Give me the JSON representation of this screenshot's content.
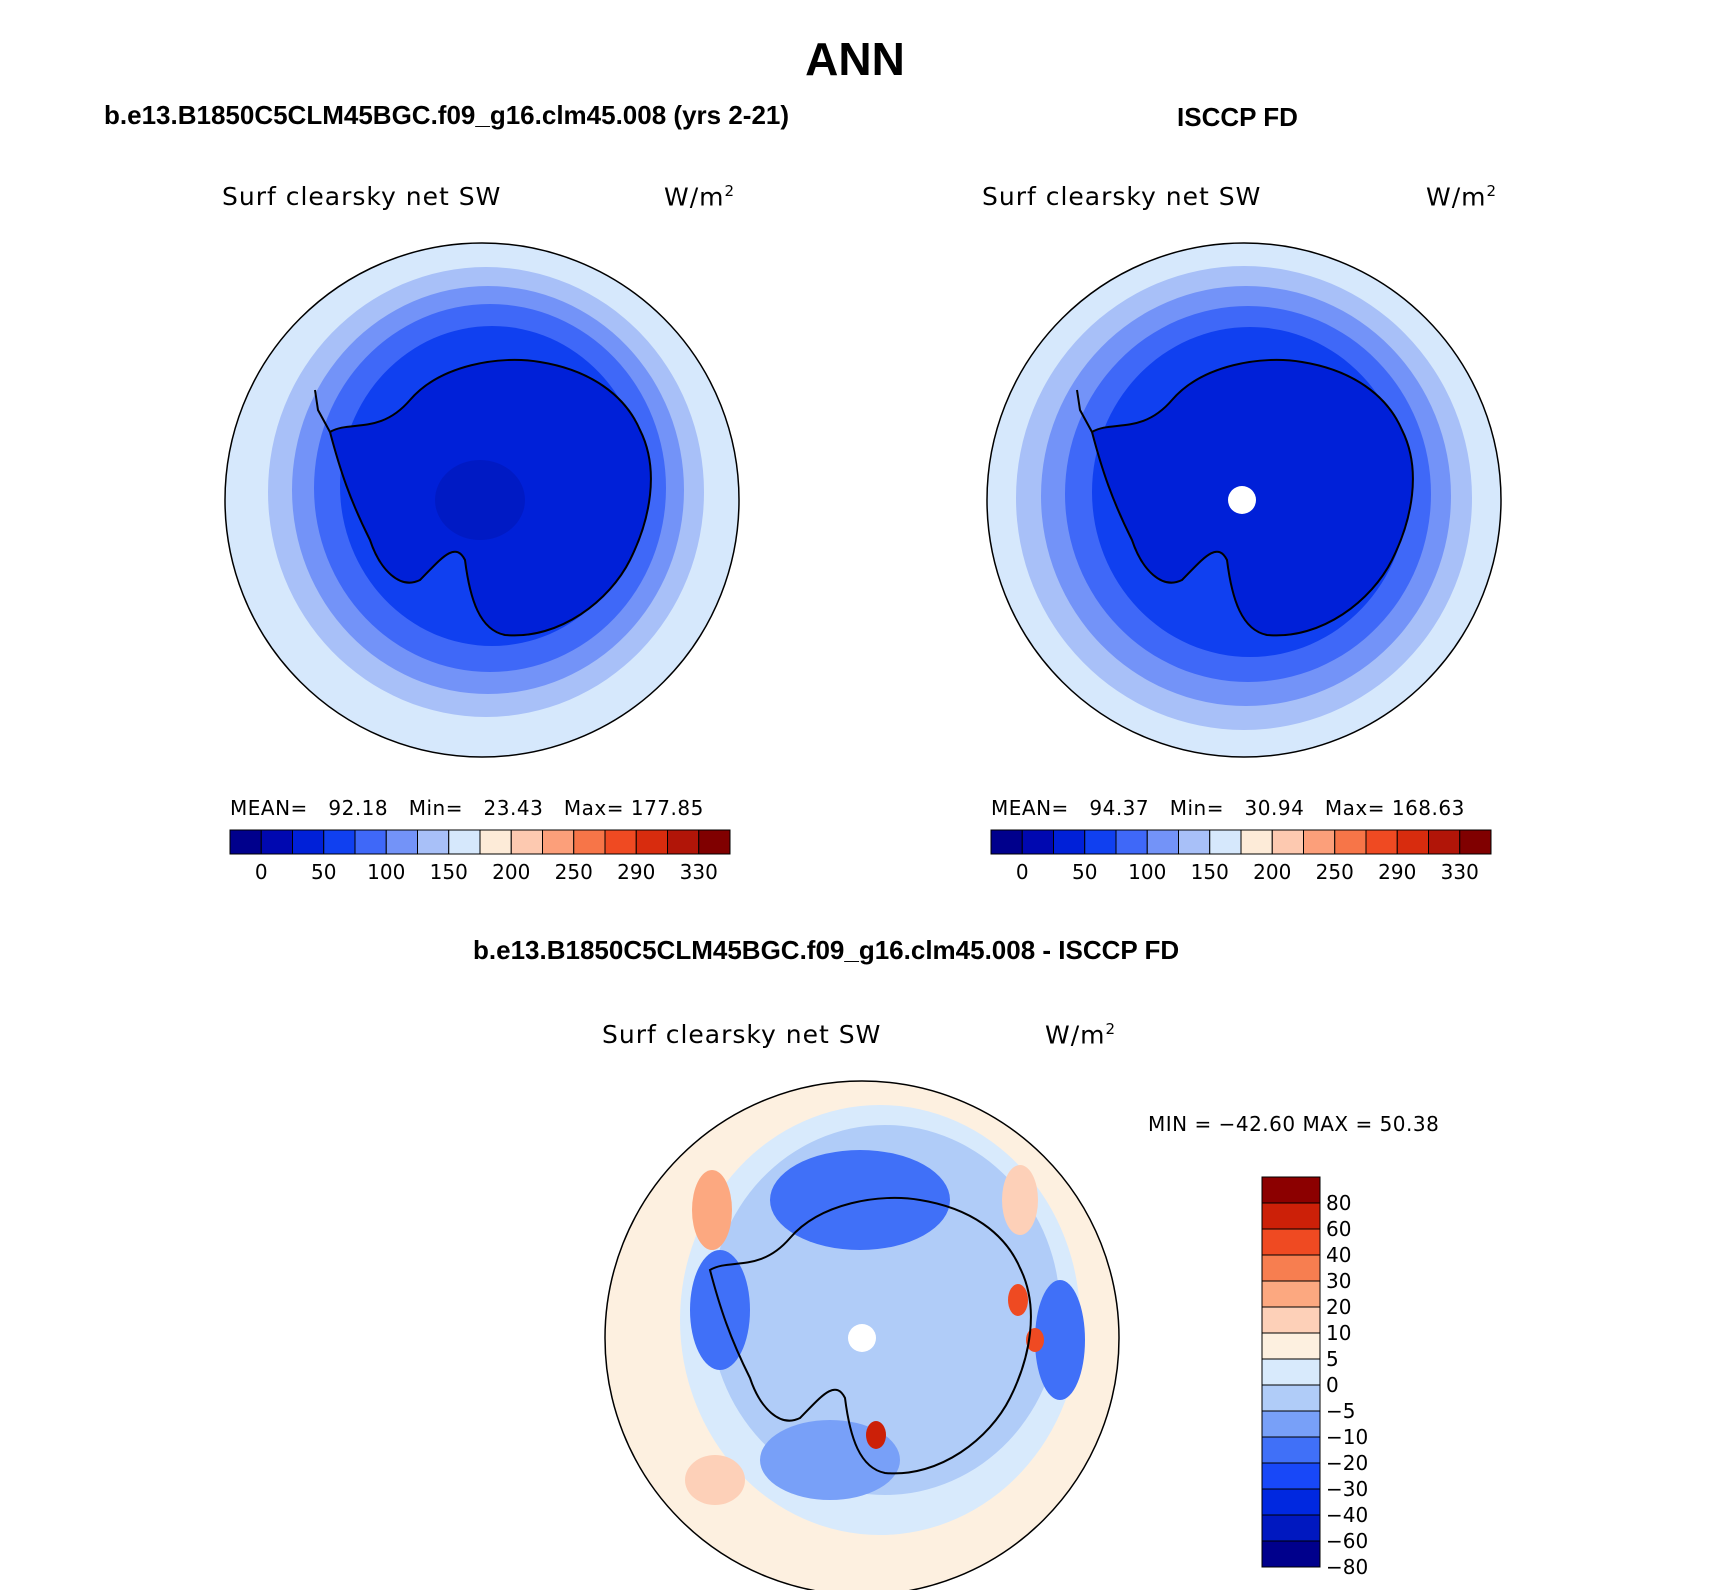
{
  "figure": {
    "title": "ANN",
    "colors": {
      "scale": [
        "#00008c",
        "#0008b0",
        "#0020d8",
        "#1040f0",
        "#3f68f8",
        "#7393f8",
        "#a8c0f8",
        "#d6e8fc",
        "#fdebd8",
        "#fdc9b0",
        "#fc9f7a",
        "#f77548",
        "#ef4a22",
        "#d82c0e",
        "#b11508",
        "#800000"
      ],
      "diff": [
        "#00008c",
        "#0018c0",
        "#0028e0",
        "#1848f8",
        "#4070f8",
        "#78a0f8",
        "#b0ccf8",
        "#d8eafc",
        "#fdf0e0",
        "#fdd0b8",
        "#fca880",
        "#f77e50",
        "#ef4a22",
        "#cc2008",
        "#8c0000"
      ]
    }
  },
  "panels": {
    "model": {
      "title": "b.e13.B1850C5CLM45BGC.f09_g16.clm45.008 (yrs 2-21)",
      "variable": "Surf clearsky net SW",
      "units": "W/m",
      "units_sup": "2",
      "stats": {
        "mean_label": "MEAN=",
        "mean": "92.18",
        "min_label": "Min=",
        "min": "23.43",
        "max_label": "Max=",
        "max": "177.85"
      },
      "colorbar_ticks": [
        "0",
        "50",
        "100",
        "150",
        "200",
        "250",
        "290",
        "330"
      ]
    },
    "obs": {
      "title": "ISCCP FD",
      "variable": "Surf clearsky net SW",
      "units": "W/m",
      "units_sup": "2",
      "stats": {
        "mean_label": "MEAN=",
        "mean": "94.37",
        "min_label": "Min=",
        "min": "30.94",
        "max_label": "Max=",
        "max": "168.63"
      },
      "colorbar_ticks": [
        "0",
        "50",
        "100",
        "150",
        "200",
        "250",
        "290",
        "330"
      ]
    },
    "diff": {
      "title": "b.e13.B1850C5CLM45BGC.f09_g16.clm45.008 - ISCCP FD",
      "variable": "Surf clearsky net SW",
      "units": "W/m",
      "units_sup": "2",
      "stats": {
        "text": "MIN = −42.60 MAX =  50.38"
      },
      "colorbar_ticks": [
        "80",
        "60",
        "40",
        "30",
        "20",
        "10",
        "5",
        "0",
        "−5",
        "−10",
        "−20",
        "−30",
        "−40",
        "−60",
        "−80"
      ]
    }
  }
}
